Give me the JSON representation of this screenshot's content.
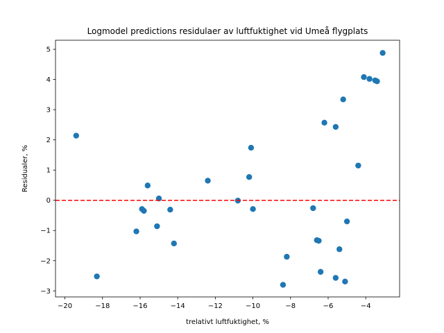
{
  "chart_data": {
    "type": "scatter",
    "title": "Logmodel predictions residulaer av luftfuktighet vid Umeå flygplats",
    "xlabel": "trelativt luftfuktighet,  %",
    "ylabel": "Residualer, %",
    "xlim": [
      -20.5,
      -2.2
    ],
    "ylim": [
      -3.2,
      5.3
    ],
    "xticks": [
      -20,
      -18,
      -16,
      -14,
      -12,
      -10,
      -8,
      -6,
      -4
    ],
    "xtick_labels": [
      "−20",
      "−18",
      "−16",
      "−14",
      "−12",
      "−10",
      "−8",
      "−6",
      "−4"
    ],
    "yticks": [
      -3,
      -2,
      -1,
      0,
      1,
      2,
      3,
      4,
      5
    ],
    "ytick_labels": [
      "−3",
      "−2",
      "−1",
      "0",
      "1",
      "2",
      "3",
      "4",
      "5"
    ],
    "grid": false,
    "point_color": "#1f77b4",
    "reference_line": {
      "y": 0,
      "color": "#ff0000",
      "style": "dashed"
    },
    "points": [
      {
        "x": -19.4,
        "y": 2.14
      },
      {
        "x": -18.3,
        "y": -2.52
      },
      {
        "x": -16.2,
        "y": -1.03
      },
      {
        "x": -15.9,
        "y": -0.29
      },
      {
        "x": -15.8,
        "y": -0.35
      },
      {
        "x": -15.6,
        "y": 0.49
      },
      {
        "x": -15.1,
        "y": -0.86
      },
      {
        "x": -15.0,
        "y": 0.06
      },
      {
        "x": -14.4,
        "y": -0.31
      },
      {
        "x": -14.2,
        "y": -1.43
      },
      {
        "x": -12.4,
        "y": 0.65
      },
      {
        "x": -10.8,
        "y": -0.01
      },
      {
        "x": -10.2,
        "y": 0.77
      },
      {
        "x": -10.1,
        "y": 1.74
      },
      {
        "x": -10.0,
        "y": -0.29
      },
      {
        "x": -8.4,
        "y": -2.8
      },
      {
        "x": -8.2,
        "y": -1.87
      },
      {
        "x": -6.8,
        "y": -0.26
      },
      {
        "x": -6.6,
        "y": -1.32
      },
      {
        "x": -6.5,
        "y": -1.34
      },
      {
        "x": -6.4,
        "y": -2.37
      },
      {
        "x": -6.2,
        "y": 2.57
      },
      {
        "x": -5.6,
        "y": 2.43
      },
      {
        "x": -5.6,
        "y": -2.57
      },
      {
        "x": -5.4,
        "y": -1.62
      },
      {
        "x": -5.2,
        "y": 3.34
      },
      {
        "x": -5.1,
        "y": -2.69
      },
      {
        "x": -5.0,
        "y": -0.7
      },
      {
        "x": -4.4,
        "y": 1.15
      },
      {
        "x": -4.1,
        "y": 4.08
      },
      {
        "x": -3.8,
        "y": 4.02
      },
      {
        "x": -3.5,
        "y": 3.97
      },
      {
        "x": -3.4,
        "y": 3.94
      },
      {
        "x": -3.1,
        "y": 4.88
      }
    ]
  }
}
